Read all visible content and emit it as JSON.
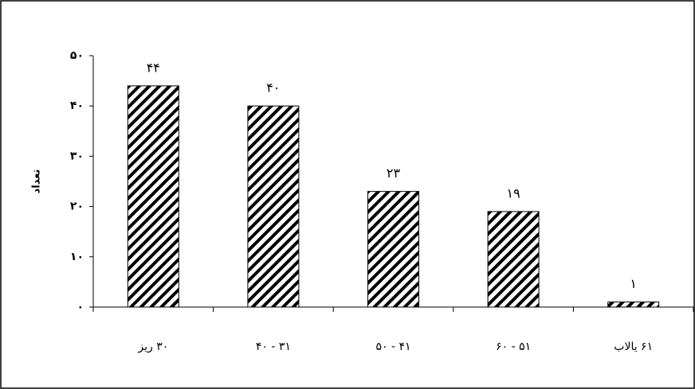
{
  "chart_data": {
    "type": "bar",
    "y_label": "تعداد",
    "categories": [
      "زیر ۳۰",
      "۴۰ - ۳۱",
      "۵۰ - ۴۱",
      "۶۰ - ۵۱",
      "بالای ۶۱"
    ],
    "values": [
      44,
      40,
      23,
      19,
      1
    ],
    "value_labels": [
      "۴۴",
      "۴۰",
      "۲۳",
      "۱۹",
      "۱"
    ],
    "color": "#000000",
    "ylim": [
      0,
      50
    ],
    "yticks": [
      {
        "value": 0,
        "label": "۰"
      },
      {
        "value": 10,
        "label": "۱۰"
      },
      {
        "value": 20,
        "label": "۲۰"
      },
      {
        "value": 30,
        "label": "۳۰"
      },
      {
        "value": 40,
        "label": "۴۰"
      },
      {
        "value": 50,
        "label": "۵۰"
      }
    ],
    "grid": false
  }
}
